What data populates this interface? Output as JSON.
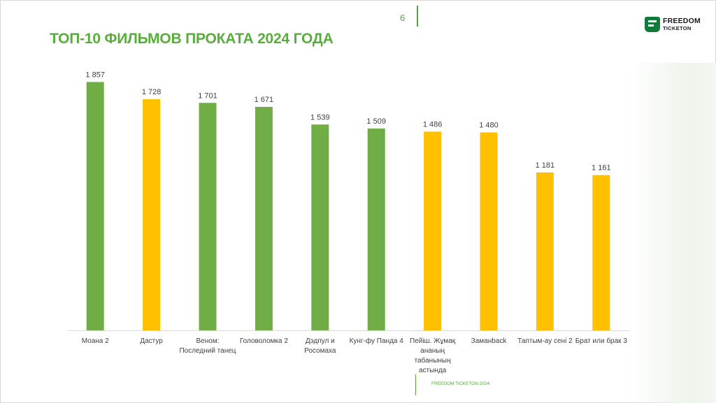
{
  "page_number": "6",
  "title": "ТОП-10 ФИЛЬМОВ ПРОКАТА 2024 ГОДА",
  "logo": {
    "line1": "FREEDOM",
    "line2": "TICKETON"
  },
  "footer": "FREEDOM TICKETON 2024",
  "colors": {
    "green": "#70ad47",
    "yellow": "#ffc000",
    "accent": "#57a83a"
  },
  "chart_data": {
    "type": "bar",
    "title": "",
    "xlabel": "",
    "ylabel": "",
    "ylim": [
      0,
      2000
    ],
    "grid": false,
    "categories": [
      [
        "Моана 2"
      ],
      [
        "Дастур"
      ],
      [
        "Веном:",
        "Последний танец"
      ],
      [
        "Головоломка 2"
      ],
      [
        "Дэдпул и",
        "Росомаха"
      ],
      [
        "Кунг-фу Панда 4"
      ],
      [
        "Пейіш. Жұмақ",
        "ананың",
        "табанының",
        "астында"
      ],
      [
        "Заманback"
      ],
      [
        "Таптым-ау сені 2"
      ],
      [
        "Брат или брак 3"
      ]
    ],
    "values": [
      1857,
      1728,
      1701,
      1671,
      1539,
      1509,
      1486,
      1480,
      1181,
      1161
    ],
    "value_labels": [
      "1 857",
      "1 728",
      "1 701",
      "1 671",
      "1 539",
      "1 509",
      "1 486",
      "1 480",
      "1 181",
      "1 161"
    ],
    "bar_colors": [
      "green",
      "yellow",
      "green",
      "green",
      "green",
      "green",
      "yellow",
      "yellow",
      "yellow",
      "yellow"
    ]
  }
}
